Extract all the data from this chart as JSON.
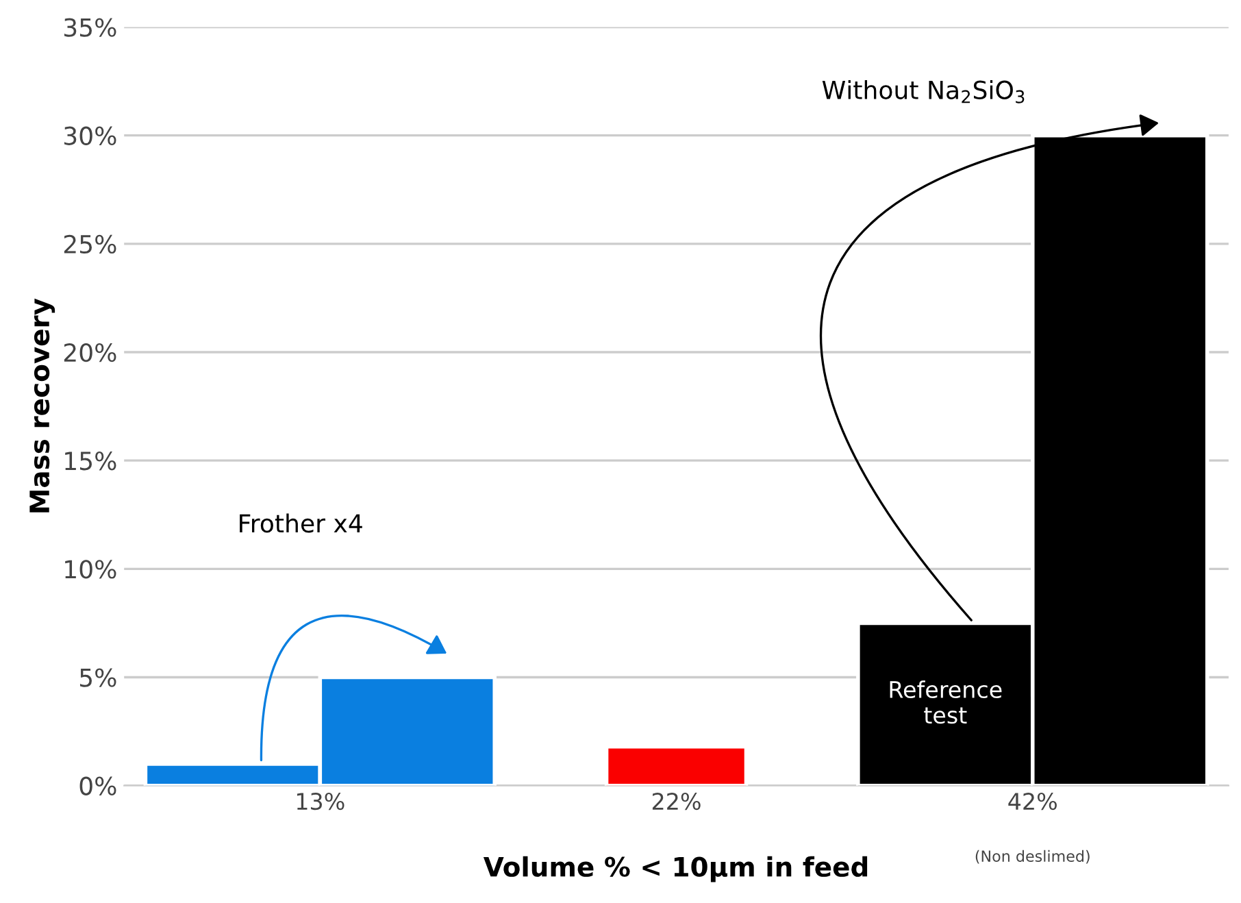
{
  "chart_data": {
    "type": "bar",
    "xlabel": "Volume % < 10µm in feed",
    "ylabel": "Mass recovery",
    "categories": [
      "13%",
      "22%",
      "42%"
    ],
    "series": [
      {
        "colors": [
          "#0a7fe0",
          "#fa0000",
          "#000000"
        ],
        "values": [
          1.0,
          1.8,
          7.5
        ]
      },
      {
        "colors": [
          "#0a7fe0",
          null,
          "#000000"
        ],
        "values": [
          5.0,
          null,
          30.0
        ]
      }
    ],
    "ylim": [
      0,
      35
    ],
    "yticks": [
      {
        "value": 0,
        "label": "0%"
      },
      {
        "value": 5,
        "label": "5%"
      },
      {
        "value": 10,
        "label": "10%"
      },
      {
        "value": 15,
        "label": "15%"
      },
      {
        "value": 20,
        "label": "20%"
      },
      {
        "value": 25,
        "label": "25%"
      },
      {
        "value": 30,
        "label": "30%"
      },
      {
        "value": 35,
        "label": "35%"
      }
    ],
    "grid": "y",
    "annotations": [
      "Frother x4",
      "Without Na$_{2}$SiO$_{3}$",
      "Reference test",
      "(Non deslimed)"
    ]
  }
}
